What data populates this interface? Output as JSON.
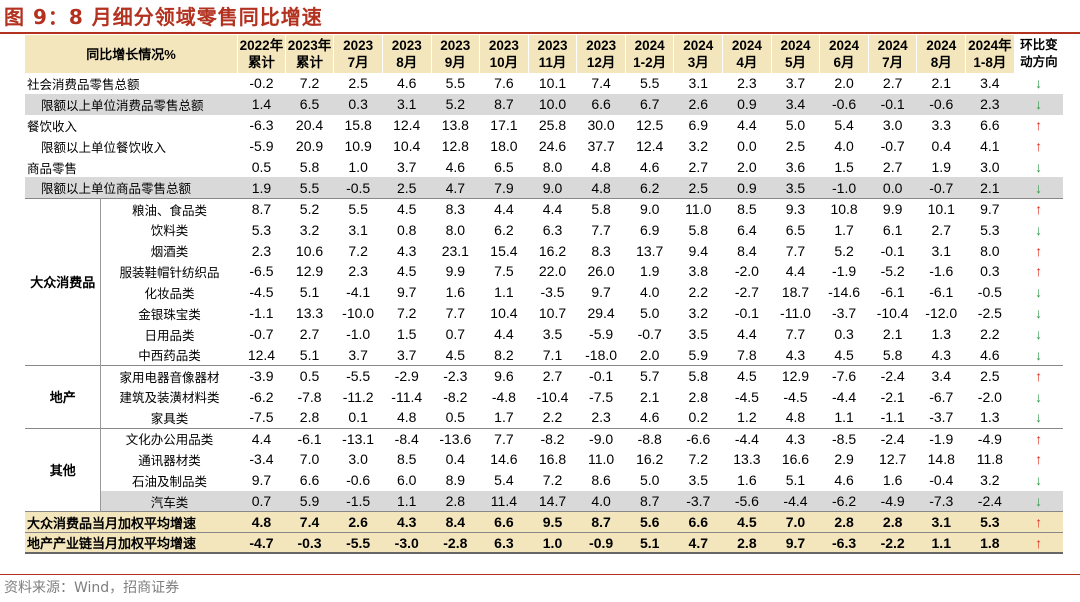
{
  "title": "图 9：8 月细分领域零售同比增速",
  "source": "资料来源：Wind，招商证券",
  "header": {
    "label": "同比增长情况%",
    "columns": [
      {
        "l1": "2022年",
        "l2": "累计"
      },
      {
        "l1": "2023年",
        "l2": "累计"
      },
      {
        "l1": "2023",
        "l2": "7月"
      },
      {
        "l1": "2023",
        "l2": "8月"
      },
      {
        "l1": "2023",
        "l2": "9月"
      },
      {
        "l1": "2023",
        "l2": "10月"
      },
      {
        "l1": "2023",
        "l2": "11月"
      },
      {
        "l1": "2023",
        "l2": "12月"
      },
      {
        "l1": "2024",
        "l2": "1-2月"
      },
      {
        "l1": "2024",
        "l2": "3月"
      },
      {
        "l1": "2024",
        "l2": "4月"
      },
      {
        "l1": "2024",
        "l2": "5月"
      },
      {
        "l1": "2024",
        "l2": "6月"
      },
      {
        "l1": "2024",
        "l2": "7月"
      },
      {
        "l1": "2024",
        "l2": "8月"
      },
      {
        "l1": "2024年",
        "l2": "1-8月"
      }
    ],
    "direction": {
      "l1": "环比变",
      "l2": "动方向"
    }
  },
  "arrows": {
    "up": "↑",
    "down": "↓"
  },
  "rows": [
    {
      "label": "社会消费品零售总额",
      "indent": 0,
      "values": [
        "-0.2",
        "7.2",
        "2.5",
        "4.6",
        "5.5",
        "7.6",
        "10.1",
        "7.4",
        "5.5",
        "3.1",
        "2.3",
        "3.7",
        "2.0",
        "2.7",
        "2.1",
        "3.4"
      ],
      "dir": "down"
    },
    {
      "label": "限额以上单位消费品零售总额",
      "indent": 1,
      "shade": true,
      "values": [
        "1.4",
        "6.5",
        "0.3",
        "3.1",
        "5.2",
        "8.7",
        "10.0",
        "6.6",
        "6.7",
        "2.6",
        "0.9",
        "3.4",
        "-0.6",
        "-0.1",
        "-0.6",
        "2.3"
      ],
      "dir": "down"
    },
    {
      "label": "餐饮收入",
      "indent": 0,
      "values": [
        "-6.3",
        "20.4",
        "15.8",
        "12.4",
        "13.8",
        "17.1",
        "25.8",
        "30.0",
        "12.5",
        "6.9",
        "4.4",
        "5.0",
        "5.4",
        "3.0",
        "3.3",
        "6.6"
      ],
      "dir": "up"
    },
    {
      "label": "限额以上单位餐饮收入",
      "indent": 1,
      "values": [
        "-5.9",
        "20.9",
        "10.9",
        "10.4",
        "12.8",
        "18.0",
        "24.6",
        "37.7",
        "12.4",
        "3.2",
        "0.0",
        "2.5",
        "4.0",
        "-0.7",
        "0.4",
        "4.1"
      ],
      "dir": "up"
    },
    {
      "label": "商品零售",
      "indent": 0,
      "values": [
        "0.5",
        "5.8",
        "1.0",
        "3.7",
        "4.6",
        "6.5",
        "8.0",
        "4.8",
        "4.6",
        "2.7",
        "2.0",
        "3.6",
        "1.5",
        "2.7",
        "1.9",
        "3.0"
      ],
      "dir": "down"
    },
    {
      "label": "限额以上单位商品零售总额",
      "indent": 1,
      "shade": true,
      "values": [
        "1.9",
        "5.5",
        "-0.5",
        "2.5",
        "4.7",
        "7.9",
        "9.0",
        "4.8",
        "6.2",
        "2.5",
        "0.9",
        "3.5",
        "-1.0",
        "0.0",
        "-0.7",
        "2.1"
      ],
      "dir": "down"
    }
  ],
  "groups": [
    {
      "name": "大众消费品",
      "rows": [
        {
          "label": "粮油、食品类",
          "values": [
            "8.7",
            "5.2",
            "5.5",
            "4.5",
            "8.3",
            "4.4",
            "4.4",
            "5.8",
            "9.0",
            "11.0",
            "8.5",
            "9.3",
            "10.8",
            "9.9",
            "10.1",
            "9.7"
          ],
          "dir": "up"
        },
        {
          "label": "饮料类",
          "values": [
            "5.3",
            "3.2",
            "3.1",
            "0.8",
            "8.0",
            "6.2",
            "6.3",
            "7.7",
            "6.9",
            "5.8",
            "6.4",
            "6.5",
            "1.7",
            "6.1",
            "2.7",
            "5.3"
          ],
          "dir": "down"
        },
        {
          "label": "烟酒类",
          "values": [
            "2.3",
            "10.6",
            "7.2",
            "4.3",
            "23.1",
            "15.4",
            "16.2",
            "8.3",
            "13.7",
            "9.4",
            "8.4",
            "7.7",
            "5.2",
            "-0.1",
            "3.1",
            "8.0"
          ],
          "dir": "up"
        },
        {
          "label": "服装鞋帽针纺织品",
          "values": [
            "-6.5",
            "12.9",
            "2.3",
            "4.5",
            "9.9",
            "7.5",
            "22.0",
            "26.0",
            "1.9",
            "3.8",
            "-2.0",
            "4.4",
            "-1.9",
            "-5.2",
            "-1.6",
            "0.3"
          ],
          "dir": "up"
        },
        {
          "label": "化妆品类",
          "values": [
            "-4.5",
            "5.1",
            "-4.1",
            "9.7",
            "1.6",
            "1.1",
            "-3.5",
            "9.7",
            "4.0",
            "2.2",
            "-2.7",
            "18.7",
            "-14.6",
            "-6.1",
            "-6.1",
            "-0.5"
          ],
          "dir": "down"
        },
        {
          "label": "金银珠宝类",
          "values": [
            "-1.1",
            "13.3",
            "-10.0",
            "7.2",
            "7.7",
            "10.4",
            "10.7",
            "29.4",
            "5.0",
            "3.2",
            "-0.1",
            "-11.0",
            "-3.7",
            "-10.4",
            "-12.0",
            "-2.5"
          ],
          "dir": "down"
        },
        {
          "label": "日用品类",
          "values": [
            "-0.7",
            "2.7",
            "-1.0",
            "1.5",
            "0.7",
            "4.4",
            "3.5",
            "-5.9",
            "-0.7",
            "3.5",
            "4.4",
            "7.7",
            "0.3",
            "2.1",
            "1.3",
            "2.2"
          ],
          "dir": "down"
        },
        {
          "label": "中西药品类",
          "values": [
            "12.4",
            "5.1",
            "3.7",
            "3.7",
            "4.5",
            "8.2",
            "7.1",
            "-18.0",
            "2.0",
            "5.9",
            "7.8",
            "4.3",
            "4.5",
            "5.8",
            "4.3",
            "4.6"
          ],
          "dir": "down"
        }
      ]
    },
    {
      "name": "地产",
      "rows": [
        {
          "label": "家用电器音像器材",
          "values": [
            "-3.9",
            "0.5",
            "-5.5",
            "-2.9",
            "-2.3",
            "9.6",
            "2.7",
            "-0.1",
            "5.7",
            "5.8",
            "4.5",
            "12.9",
            "-7.6",
            "-2.4",
            "3.4",
            "2.5"
          ],
          "dir": "up"
        },
        {
          "label": "建筑及装潢材料类",
          "values": [
            "-6.2",
            "-7.8",
            "-11.2",
            "-11.4",
            "-8.2",
            "-4.8",
            "-10.4",
            "-7.5",
            "2.1",
            "2.8",
            "-4.5",
            "-4.5",
            "-4.4",
            "-2.1",
            "-6.7",
            "-2.0"
          ],
          "dir": "down"
        },
        {
          "label": "家具类",
          "values": [
            "-7.5",
            "2.8",
            "0.1",
            "4.8",
            "0.5",
            "1.7",
            "2.2",
            "2.3",
            "4.6",
            "0.2",
            "1.2",
            "4.8",
            "1.1",
            "-1.1",
            "-3.7",
            "1.3"
          ],
          "dir": "down"
        }
      ]
    },
    {
      "name": "其他",
      "rows": [
        {
          "label": "文化办公用品类",
          "values": [
            "4.4",
            "-6.1",
            "-13.1",
            "-8.4",
            "-13.6",
            "7.7",
            "-8.2",
            "-9.0",
            "-8.8",
            "-6.6",
            "-4.4",
            "4.3",
            "-8.5",
            "-2.4",
            "-1.9",
            "-4.9"
          ],
          "dir": "up"
        },
        {
          "label": "通讯器材类",
          "values": [
            "-3.4",
            "7.0",
            "3.0",
            "8.5",
            "0.4",
            "14.6",
            "16.8",
            "11.0",
            "16.2",
            "7.2",
            "13.3",
            "16.6",
            "2.9",
            "12.7",
            "14.8",
            "11.8"
          ],
          "dir": "up"
        },
        {
          "label": "石油及制品类",
          "values": [
            "9.7",
            "6.6",
            "-0.6",
            "6.0",
            "8.9",
            "5.4",
            "7.2",
            "8.6",
            "5.0",
            "3.5",
            "1.6",
            "5.1",
            "4.6",
            "1.6",
            "-0.4",
            "3.2"
          ],
          "dir": "down"
        },
        {
          "label": "汽车类",
          "shade": true,
          "values": [
            "0.7",
            "5.9",
            "-1.5",
            "1.1",
            "2.8",
            "11.4",
            "14.7",
            "4.0",
            "8.7",
            "-3.7",
            "-5.6",
            "-4.4",
            "-6.2",
            "-4.9",
            "-7.3",
            "-2.4"
          ],
          "dir": "down"
        }
      ]
    }
  ],
  "summary": [
    {
      "label": "大众消费品当月加权平均增速",
      "values": [
        "4.8",
        "7.4",
        "2.6",
        "4.3",
        "8.4",
        "6.6",
        "9.5",
        "8.7",
        "5.6",
        "6.6",
        "4.5",
        "7.0",
        "2.8",
        "2.8",
        "3.1",
        "5.3"
      ],
      "dir": "up"
    },
    {
      "label": "地产产业链当月加权平均增速",
      "values": [
        "-4.7",
        "-0.3",
        "-5.5",
        "-3.0",
        "-2.8",
        "6.3",
        "1.0",
        "-0.9",
        "5.1",
        "4.7",
        "2.8",
        "9.7",
        "-6.3",
        "-2.2",
        "1.1",
        "1.8"
      ],
      "dir": "up"
    }
  ]
}
